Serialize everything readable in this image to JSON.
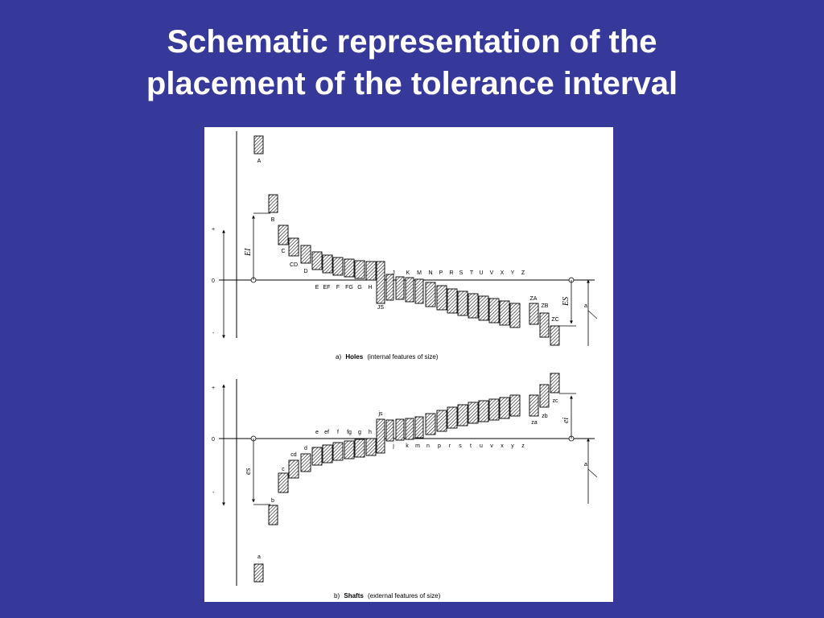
{
  "title": {
    "line1": "Schematic representation of the",
    "line2": "placement of the tolerance interval"
  },
  "colors": {
    "background": "#36389a",
    "title": "#ffffff",
    "panel": "#ffffff",
    "ink": "#000000"
  },
  "holes": {
    "caption_prefix": "a)",
    "caption_bold": "Holes",
    "caption_rest": "(internal features of size)",
    "sign_plus": "+",
    "sign_zero": "0",
    "sign_minus": "-",
    "lower_deviation_label": "EI",
    "upper_deviation_label": "ES",
    "note_marker": "a",
    "letters": [
      "A",
      "B",
      "C",
      "CD",
      "D",
      "E",
      "EF",
      "F",
      "FG",
      "G",
      "H",
      "JS",
      "J",
      "K",
      "M",
      "N",
      "P",
      "R",
      "S",
      "T",
      "U",
      "V",
      "X",
      "Y",
      "Z",
      "ZA",
      "ZB",
      "ZC"
    ]
  },
  "shafts": {
    "caption_prefix": "b)",
    "caption_bold": "Shafts",
    "caption_rest": "(external features of size)",
    "sign_plus": "+",
    "sign_zero": "0",
    "sign_minus": "-",
    "upper_deviation_label": "es",
    "lower_deviation_label": "ei",
    "note_marker": "a",
    "letters": [
      "a",
      "b",
      "c",
      "cd",
      "d",
      "e",
      "ef",
      "f",
      "fg",
      "g",
      "h",
      "js",
      "j",
      "k",
      "m",
      "n",
      "p",
      "r",
      "s",
      "t",
      "u",
      "v",
      "x",
      "y",
      "z",
      "za",
      "zb",
      "zc"
    ]
  }
}
